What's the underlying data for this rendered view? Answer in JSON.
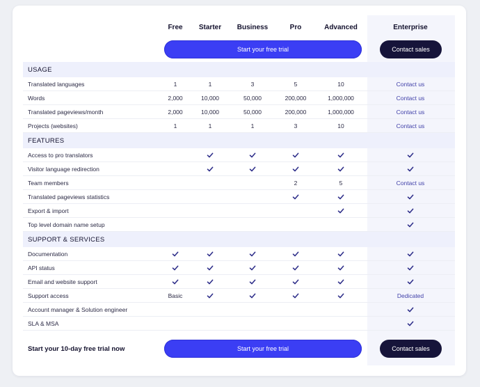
{
  "plans": [
    "Free",
    "Starter",
    "Business",
    "Pro",
    "Advanced",
    "Enterprise"
  ],
  "buttons": {
    "trial_label": "Start your free trial",
    "sales_label": "Contact sales"
  },
  "footer": {
    "text": "Start your 10-day free trial now"
  },
  "icons": {
    "check": "check-icon"
  },
  "colors": {
    "accent": "#3b3ef4",
    "dark": "#16143a",
    "check": "#2f2f8a",
    "section_bg": "#eef0fc",
    "enterprise_bg": "#f4f5fc"
  },
  "sections": [
    {
      "title": "USAGE",
      "rows": [
        {
          "label": "Translated languages",
          "values": [
            "1",
            "1",
            "3",
            "5",
            "10",
            "Contact us"
          ]
        },
        {
          "label": "Words",
          "values": [
            "2,000",
            "10,000",
            "50,000",
            "200,000",
            "1,000,000",
            "Contact us"
          ]
        },
        {
          "label": "Translated pageviews/month",
          "values": [
            "2,000",
            "10,000",
            "50,000",
            "200,000",
            "1,000,000",
            "Contact us"
          ]
        },
        {
          "label": "Projects (websites)",
          "values": [
            "1",
            "1",
            "1",
            "3",
            "10",
            "Contact us"
          ]
        }
      ]
    },
    {
      "title": "FEATURES",
      "rows": [
        {
          "label": "Access to pro translators",
          "values": [
            "",
            "check",
            "check",
            "check",
            "check",
            "check"
          ]
        },
        {
          "label": "Visitor language redirection",
          "values": [
            "",
            "check",
            "check",
            "check",
            "check",
            "check"
          ]
        },
        {
          "label": "Team members",
          "values": [
            "",
            "",
            "",
            "2",
            "5",
            "Contact us"
          ]
        },
        {
          "label": "Translated pageviews statistics",
          "values": [
            "",
            "",
            "",
            "check",
            "check",
            "check"
          ]
        },
        {
          "label": "Export & import",
          "values": [
            "",
            "",
            "",
            "",
            "check",
            "check"
          ]
        },
        {
          "label": "Top level domain name setup",
          "values": [
            "",
            "",
            "",
            "",
            "",
            "check"
          ]
        }
      ]
    },
    {
      "title": "SUPPORT & SERVICES",
      "rows": [
        {
          "label": "Documentation",
          "values": [
            "check",
            "check",
            "check",
            "check",
            "check",
            "check"
          ]
        },
        {
          "label": "API status",
          "values": [
            "check",
            "check",
            "check",
            "check",
            "check",
            "check"
          ]
        },
        {
          "label": "Email and website support",
          "values": [
            "check",
            "check",
            "check",
            "check",
            "check",
            "check"
          ]
        },
        {
          "label": "Support access",
          "values": [
            "Basic",
            "check",
            "check",
            "check",
            "check",
            "Dedicated"
          ]
        },
        {
          "label": "Account manager & Solution engineer",
          "values": [
            "",
            "",
            "",
            "",
            "",
            "check"
          ]
        },
        {
          "label": "SLA & MSA",
          "values": [
            "",
            "",
            "",
            "",
            "",
            "check"
          ]
        }
      ]
    }
  ]
}
